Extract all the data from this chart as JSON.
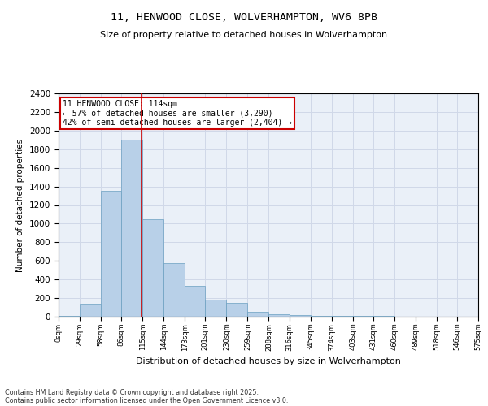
{
  "title_line1": "11, HENWOOD CLOSE, WOLVERHAMPTON, WV6 8PB",
  "title_line2": "Size of property relative to detached houses in Wolverhampton",
  "xlabel": "Distribution of detached houses by size in Wolverhampton",
  "ylabel": "Number of detached properties",
  "footer_line1": "Contains HM Land Registry data © Crown copyright and database right 2025.",
  "footer_line2": "Contains public sector information licensed under the Open Government Licence v3.0.",
  "annotation_title": "11 HENWOOD CLOSE: 114sqm",
  "annotation_line2": "← 57% of detached houses are smaller (3,290)",
  "annotation_line3": "42% of semi-detached houses are larger (2,404) →",
  "property_size": 114,
  "bin_edges": [
    0,
    29,
    58,
    86,
    115,
    144,
    173,
    201,
    230,
    259,
    288,
    316,
    345,
    374,
    403,
    431,
    460,
    489,
    518,
    546,
    575
  ],
  "bin_counts": [
    10,
    130,
    1350,
    1900,
    1050,
    575,
    330,
    180,
    150,
    55,
    25,
    15,
    12,
    10,
    5,
    5,
    3,
    1,
    0,
    2
  ],
  "bar_color": "#b8d0e8",
  "bar_edge_color": "#6a9fc0",
  "vline_color": "#cc0000",
  "vline_x": 114,
  "annotation_box_color": "#cc0000",
  "ylim": [
    0,
    2400
  ],
  "yticks": [
    0,
    200,
    400,
    600,
    800,
    1000,
    1200,
    1400,
    1600,
    1800,
    2000,
    2200,
    2400
  ],
  "grid_color": "#d0d8e8",
  "background_color": "#eaf0f8",
  "fig_width": 6.0,
  "fig_height": 5.0,
  "dpi": 100
}
